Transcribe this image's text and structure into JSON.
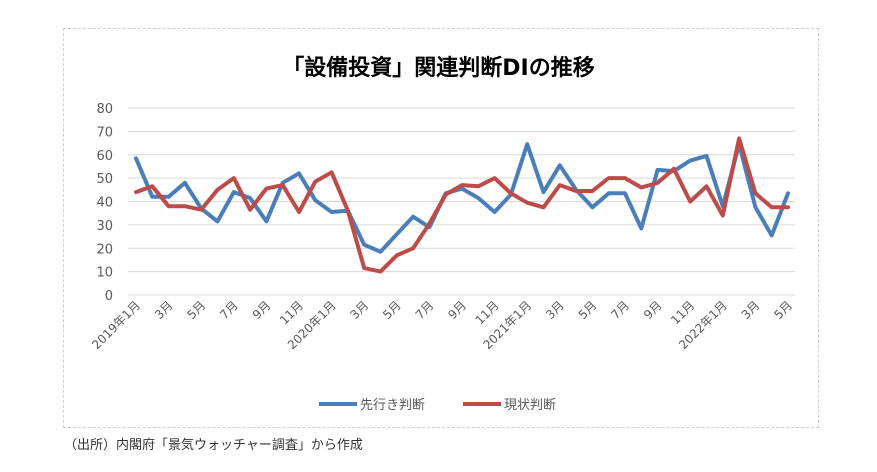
{
  "chart_data": {
    "type": "line",
    "title": "「設備投資」関連判断DIの推移",
    "xlabel": "",
    "ylabel": "",
    "ylim": [
      0,
      80
    ],
    "yticks": [
      0,
      10,
      20,
      30,
      40,
      50,
      60,
      70,
      80
    ],
    "ytick_labels": [
      "0",
      "10",
      "20",
      "30",
      "40",
      "50",
      "60",
      "70",
      "80"
    ],
    "grid": true,
    "legend_position": "bottom",
    "x": [
      "2019年1月",
      "2019年2月",
      "2019年3月",
      "2019年4月",
      "2019年5月",
      "2019年6月",
      "2019年7月",
      "2019年8月",
      "2019年9月",
      "2019年10月",
      "2019年11月",
      "2019年12月",
      "2020年1月",
      "2020年2月",
      "2020年3月",
      "2020年4月",
      "2020年5月",
      "2020年6月",
      "2020年7月",
      "2020年8月",
      "2020年9月",
      "2020年10月",
      "2020年11月",
      "2020年12月",
      "2021年1月",
      "2021年2月",
      "2021年3月",
      "2021年4月",
      "2021年5月",
      "2021年6月",
      "2021年7月",
      "2021年8月",
      "2021年9月",
      "2021年10月",
      "2021年11月",
      "2021年12月",
      "2022年1月",
      "2022年2月",
      "2022年3月",
      "2022年4月",
      "2022年5月"
    ],
    "xtick_labels": [
      {
        "index": 0,
        "label": "2019年1月"
      },
      {
        "index": 2,
        "label": "3月"
      },
      {
        "index": 4,
        "label": "5月"
      },
      {
        "index": 6,
        "label": "7月"
      },
      {
        "index": 8,
        "label": "9月"
      },
      {
        "index": 10,
        "label": "11月"
      },
      {
        "index": 12,
        "label": "2020年1月"
      },
      {
        "index": 14,
        "label": "3月"
      },
      {
        "index": 16,
        "label": "5月"
      },
      {
        "index": 18,
        "label": "7月"
      },
      {
        "index": 20,
        "label": "9月"
      },
      {
        "index": 22,
        "label": "11月"
      },
      {
        "index": 24,
        "label": "2021年1月"
      },
      {
        "index": 26,
        "label": "3月"
      },
      {
        "index": 28,
        "label": "5月"
      },
      {
        "index": 30,
        "label": "7月"
      },
      {
        "index": 32,
        "label": "9月"
      },
      {
        "index": 34,
        "label": "11月"
      },
      {
        "index": 36,
        "label": "2022年1月"
      },
      {
        "index": 38,
        "label": "3月"
      },
      {
        "index": 40,
        "label": "5月"
      }
    ],
    "series": [
      {
        "name": "先行き判断",
        "color": "#4a7ebb",
        "values": [
          58.5,
          42,
          42,
          48,
          37,
          31.5,
          44,
          41.5,
          31.5,
          48,
          52,
          40.5,
          35.5,
          36,
          21.5,
          18.5,
          26,
          33.5,
          29,
          43.5,
          45.5,
          41.5,
          35.5,
          43,
          64.5,
          44,
          55.5,
          45,
          37.5,
          43.5,
          43.5,
          28.5,
          53.5,
          53,
          57.5,
          59.5,
          38,
          64.5,
          37.5,
          25.5,
          43.5
        ]
      },
      {
        "name": "現状判断",
        "color": "#be4b48",
        "values": [
          44,
          46.5,
          38,
          38,
          36.5,
          45,
          50,
          36.5,
          45.5,
          47,
          35.5,
          48.5,
          52.5,
          36,
          11.5,
          10,
          17,
          20,
          30.5,
          43,
          47,
          46.5,
          50,
          43.5,
          39.5,
          37.5,
          47,
          44.5,
          44.5,
          50,
          50,
          46,
          48,
          54,
          40,
          46.5,
          34,
          67,
          43.5,
          37.5,
          37.5
        ]
      }
    ]
  },
  "source_note": "（出所）内閣府「景気ウォッチャー調査」から作成"
}
